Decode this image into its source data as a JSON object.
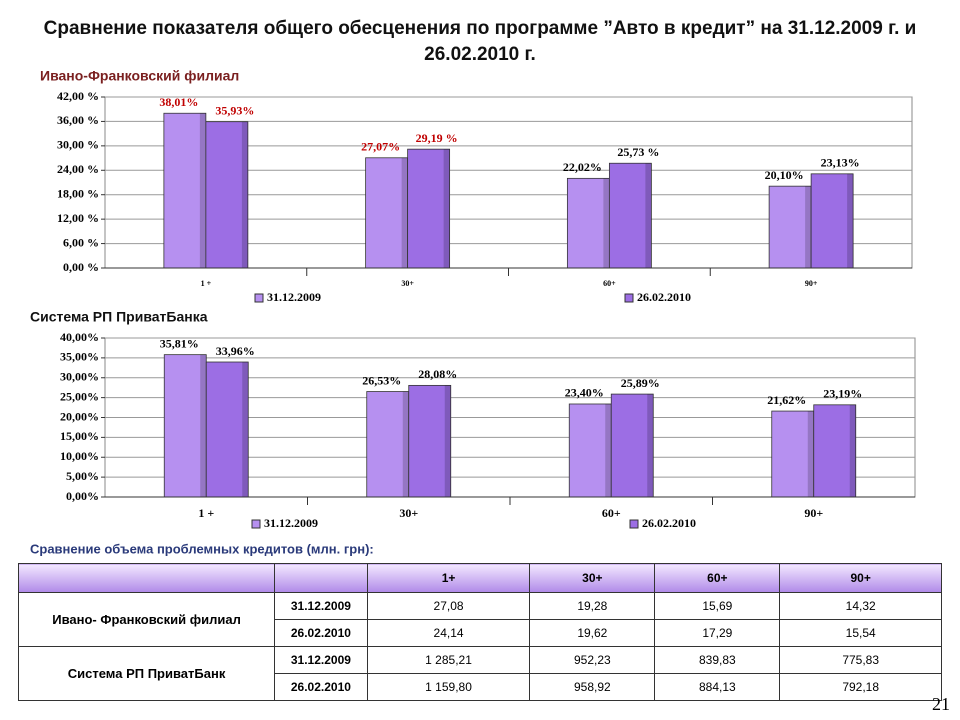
{
  "title": "Сравнение показателя общего обесценения по программе ”Авто в кредит” на 31.12.2009 г. и 26.02.2010 г.",
  "chart_data": [
    {
      "type": "bar",
      "title": "Ивано-Франковский филиал",
      "categories": [
        "1 +",
        "30+",
        "60+",
        "90+"
      ],
      "series": [
        {
          "name": "31.12.2009",
          "color": "#b690f0",
          "values": [
            38.01,
            27.07,
            22.02,
            20.1
          ],
          "value_labels": [
            "38,01%",
            "27,07%",
            "22,02%",
            "20,10%"
          ]
        },
        {
          "name": "26.02.2010",
          "color": "#9c6ee4",
          "values": [
            35.93,
            29.19,
            25.73,
            23.13
          ],
          "value_labels": [
            "35,93%",
            "29,19 %",
            "25,73 %",
            "23,13%"
          ]
        }
      ],
      "value_label_colors": [
        "#c00000",
        "#c00000",
        "#000000",
        "#000000"
      ],
      "ylim": [
        0,
        42
      ],
      "yticks": [
        {
          "value": 0,
          "label": "0,00 %"
        },
        {
          "value": 6,
          "label": "6,00 %"
        },
        {
          "value": 12,
          "label": "12,00 %"
        },
        {
          "value": 18,
          "label": "18,00 %"
        },
        {
          "value": 24,
          "label": "24,00 %"
        },
        {
          "value": 30,
          "label": "30,00 %"
        },
        {
          "value": 36,
          "label": "36,00 %"
        },
        {
          "value": 42,
          "label": "42,00 %"
        }
      ],
      "grid": true
    },
    {
      "type": "bar",
      "title": "Система РП ПриватБанка",
      "categories": [
        "1 +",
        "30+",
        "60+",
        "90+"
      ],
      "series": [
        {
          "name": "31.12.2009",
          "color": "#b690f0",
          "values": [
            35.81,
            26.53,
            23.4,
            21.62
          ],
          "value_labels": [
            "35,81%",
            "26,53%",
            "23,40%",
            "21,62%"
          ]
        },
        {
          "name": "26.02.2010",
          "color": "#9c6ee4",
          "values": [
            33.96,
            28.08,
            25.89,
            23.19
          ],
          "value_labels": [
            "33,96%",
            "28,08%",
            "25,89%",
            "23,19%"
          ]
        }
      ],
      "value_label_colors": [
        "#000000",
        "#000000",
        "#000000",
        "#000000"
      ],
      "ylim": [
        0,
        40
      ],
      "yticks": [
        {
          "value": 0,
          "label": "0,00%"
        },
        {
          "value": 5,
          "label": "5,00%"
        },
        {
          "value": 10,
          "label": "10,00%"
        },
        {
          "value": 15,
          "label": "15,00%"
        },
        {
          "value": 20,
          "label": "20,00%"
        },
        {
          "value": 25,
          "label": "25,00%"
        },
        {
          "value": 30,
          "label": "30,00%"
        },
        {
          "value": 35,
          "label": "35,00%"
        },
        {
          "value": 40,
          "label": "40,00%"
        }
      ],
      "grid": true
    }
  ],
  "table": {
    "title": "Сравнение  объема проблемных кредитов (млн. грн):",
    "columns": [
      "1+",
      "30+",
      "60+",
      "90+"
    ],
    "groups": [
      {
        "name": "Ивано- Франковский филиал",
        "rows": [
          {
            "date": "31.12.2009",
            "values": [
              "27,08",
              "19,28",
              "15,69",
              "14,32"
            ]
          },
          {
            "date": "26.02.2010",
            "values": [
              "24,14",
              "19,62",
              "17,29",
              "15,54"
            ]
          }
        ]
      },
      {
        "name": "Система РП ПриватБанк",
        "rows": [
          {
            "date": "31.12.2009",
            "values": [
              "1 285,21",
              "952,23",
              "839,83",
              "775,83"
            ]
          },
          {
            "date": "26.02.2010",
            "values": [
              "1 159,80",
              "958,92",
              "884,13",
              "792,18"
            ]
          }
        ]
      }
    ]
  },
  "page_number": "21"
}
